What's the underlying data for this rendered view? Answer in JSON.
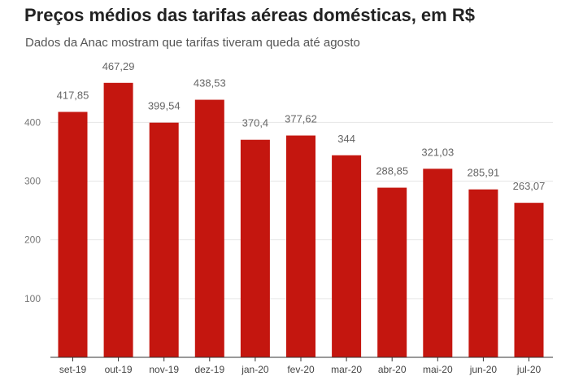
{
  "chart_data": {
    "type": "bar",
    "title": "Preços médios das tarifas aéreas domésticas, em R$",
    "subtitle": "Dados da Anac mostram que tarifas tiveram queda até agosto",
    "categories": [
      "set-19",
      "out-19",
      "nov-19",
      "dez-19",
      "jan-20",
      "fev-20",
      "mar-20",
      "abr-20",
      "mai-20",
      "jun-20",
      "jul-20"
    ],
    "values": [
      417.85,
      467.29,
      399.54,
      438.53,
      370.4,
      377.62,
      344,
      288.85,
      321.03,
      285.91,
      263.07
    ],
    "value_labels": [
      "417,85",
      "467,29",
      "399,54",
      "438,53",
      "370,4",
      "377,62",
      "344",
      "288,85",
      "321,03",
      "285,91",
      "263,07"
    ],
    "y_ticks": [
      100,
      200,
      300,
      400
    ],
    "y_tick_labels": [
      "100",
      "200",
      "300",
      "400"
    ],
    "ylim": [
      0,
      500
    ],
    "xlabel": "",
    "ylabel": "",
    "grid": true,
    "bar_color": "#c4160f"
  }
}
